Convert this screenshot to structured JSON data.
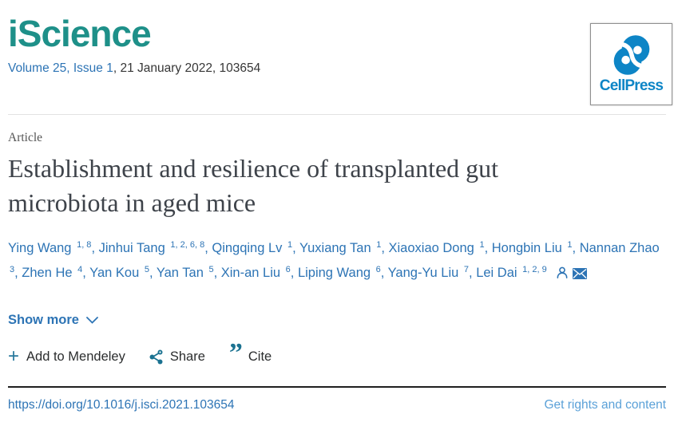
{
  "header": {
    "journal_name": "iScience",
    "issue_link": "Volume 25, Issue 1",
    "issue_rest": ", 21 January 2022, 103654",
    "publisher": "CellPress"
  },
  "article": {
    "label": "Article",
    "title": "Establishment and resilience of transplanted gut microbiota in aged mice",
    "authors": [
      {
        "name": "Ying Wang",
        "sup": "1, 8"
      },
      {
        "name": "Jinhui Tang",
        "sup": "1, 2, 6, 8"
      },
      {
        "name": "Qingqing Lv",
        "sup": "1"
      },
      {
        "name": "Yuxiang Tan",
        "sup": "1"
      },
      {
        "name": "Xiaoxiao Dong",
        "sup": "1"
      },
      {
        "name": "Hongbin Liu",
        "sup": "1"
      },
      {
        "name": "Nannan Zhao",
        "sup": "3"
      },
      {
        "name": "Zhen He",
        "sup": "4"
      },
      {
        "name": "Yan Kou",
        "sup": "5"
      },
      {
        "name": "Yan Tan",
        "sup": "5"
      },
      {
        "name": "Xin-an Liu",
        "sup": "6"
      },
      {
        "name": "Liping Wang",
        "sup": "6"
      },
      {
        "name": "Yang-Yu Liu",
        "sup": "7"
      },
      {
        "name": "Lei Dai",
        "sup": "1, 2, 9"
      }
    ],
    "show_more_label": "Show more"
  },
  "actions": {
    "mendeley_label": "Add to Mendeley",
    "share_label": "Share",
    "cite_label": "Cite"
  },
  "footer": {
    "doi": "https://doi.org/10.1016/j.isci.2021.103654",
    "rights_label": "Get rights and content"
  },
  "icons": {
    "plus": "plus-icon",
    "share": "share-nodes-icon",
    "cite": "double-quote-icon",
    "chevron": "chevron-down-icon",
    "person": "author-person-icon",
    "envelope": "email-envelope-icon"
  },
  "colors": {
    "journal_teal": "#1e9089",
    "link_blue": "#2d74b5",
    "rights_light_blue": "#5ba1d8",
    "action_icon_teal": "#27789c",
    "cellpress_blue": "#0d85c6",
    "title_gray": "#3e434a"
  }
}
